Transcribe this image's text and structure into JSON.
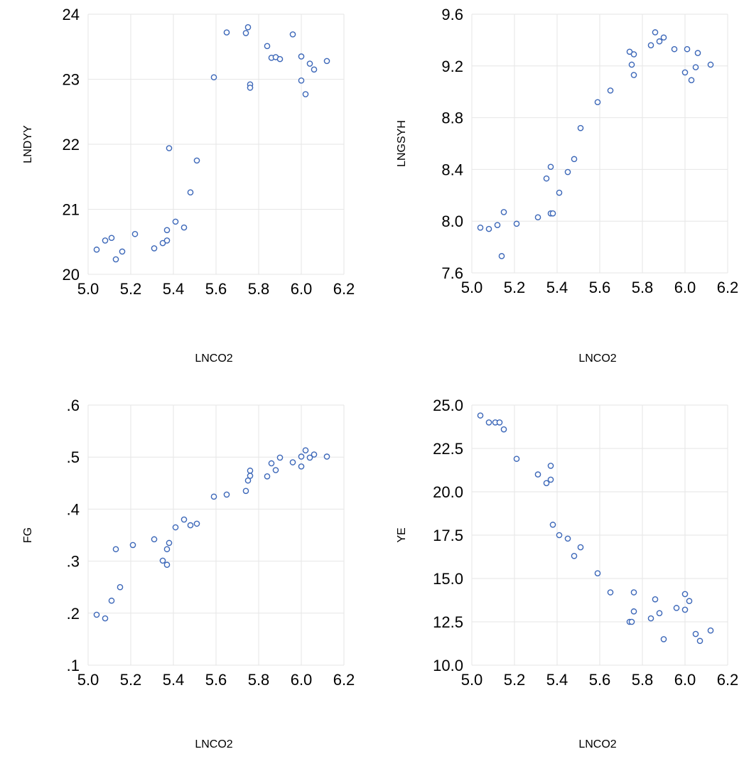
{
  "colors": {
    "marker": "#3c67b8",
    "grid": "#e6e6e6",
    "background": "#ffffff"
  },
  "chart_data": [
    {
      "type": "scatter",
      "xlabel": "LNCO2",
      "ylabel": "LNDYY",
      "xlim": [
        5.0,
        6.2
      ],
      "ylim": [
        20,
        24
      ],
      "x_ticks": [
        "5.0",
        "5.2",
        "5.4",
        "5.6",
        "5.8",
        "6.0",
        "6.2"
      ],
      "y_ticks": [
        "20",
        "21",
        "22",
        "23",
        "24"
      ],
      "grid": true,
      "points": [
        [
          5.04,
          20.38
        ],
        [
          5.08,
          20.52
        ],
        [
          5.11,
          20.56
        ],
        [
          5.13,
          20.23
        ],
        [
          5.16,
          20.35
        ],
        [
          5.22,
          20.62
        ],
        [
          5.31,
          20.4
        ],
        [
          5.35,
          20.48
        ],
        [
          5.37,
          20.52
        ],
        [
          5.37,
          20.68
        ],
        [
          5.38,
          21.94
        ],
        [
          5.41,
          20.81
        ],
        [
          5.45,
          20.72
        ],
        [
          5.48,
          21.26
        ],
        [
          5.51,
          21.75
        ],
        [
          5.59,
          23.03
        ],
        [
          5.65,
          23.72
        ],
        [
          5.74,
          23.71
        ],
        [
          5.75,
          23.8
        ],
        [
          5.76,
          22.92
        ],
        [
          5.76,
          22.87
        ],
        [
          5.84,
          23.51
        ],
        [
          5.86,
          23.33
        ],
        [
          5.88,
          23.34
        ],
        [
          5.9,
          23.31
        ],
        [
          5.96,
          23.69
        ],
        [
          6.0,
          23.35
        ],
        [
          6.0,
          22.98
        ],
        [
          6.02,
          22.77
        ],
        [
          6.04,
          23.24
        ],
        [
          6.06,
          23.15
        ],
        [
          6.12,
          23.28
        ]
      ]
    },
    {
      "type": "scatter",
      "xlabel": "LNCO2",
      "ylabel": "LNGSYH",
      "xlim": [
        5.0,
        6.2
      ],
      "ylim": [
        7.6,
        9.6
      ],
      "x_ticks": [
        "5.0",
        "5.2",
        "5.4",
        "5.6",
        "5.8",
        "6.0",
        "6.2"
      ],
      "y_ticks": [
        "7.6",
        "8.0",
        "8.4",
        "8.8",
        "9.2",
        "9.6"
      ],
      "grid": true,
      "points": [
        [
          5.04,
          7.95
        ],
        [
          5.08,
          7.94
        ],
        [
          5.12,
          7.97
        ],
        [
          5.14,
          7.73
        ],
        [
          5.15,
          8.07
        ],
        [
          5.21,
          7.98
        ],
        [
          5.31,
          8.03
        ],
        [
          5.35,
          8.33
        ],
        [
          5.37,
          8.06
        ],
        [
          5.37,
          8.42
        ],
        [
          5.38,
          8.06
        ],
        [
          5.41,
          8.22
        ],
        [
          5.45,
          8.38
        ],
        [
          5.48,
          8.48
        ],
        [
          5.51,
          8.72
        ],
        [
          5.59,
          8.92
        ],
        [
          5.65,
          9.01
        ],
        [
          5.74,
          9.31
        ],
        [
          5.75,
          9.21
        ],
        [
          5.76,
          9.13
        ],
        [
          5.76,
          9.29
        ],
        [
          5.84,
          9.36
        ],
        [
          5.86,
          9.46
        ],
        [
          5.88,
          9.39
        ],
        [
          5.9,
          9.42
        ],
        [
          5.95,
          9.33
        ],
        [
          6.0,
          9.15
        ],
        [
          6.01,
          9.33
        ],
        [
          6.03,
          9.09
        ],
        [
          6.05,
          9.19
        ],
        [
          6.06,
          9.3
        ],
        [
          6.12,
          9.21
        ]
      ]
    },
    {
      "type": "scatter",
      "xlabel": "LNCO2",
      "ylabel": "FG",
      "xlim": [
        5.0,
        6.2
      ],
      "ylim": [
        0.1,
        0.6
      ],
      "x_ticks": [
        "5.0",
        "5.2",
        "5.4",
        "5.6",
        "5.8",
        "6.0",
        "6.2"
      ],
      "y_ticks": [
        ".1",
        ".2",
        ".3",
        ".4",
        ".5",
        ".6"
      ],
      "grid": true,
      "points": [
        [
          5.04,
          0.197
        ],
        [
          5.08,
          0.19
        ],
        [
          5.11,
          0.224
        ],
        [
          5.13,
          0.323
        ],
        [
          5.15,
          0.25
        ],
        [
          5.21,
          0.331
        ],
        [
          5.31,
          0.342
        ],
        [
          5.35,
          0.301
        ],
        [
          5.37,
          0.323
        ],
        [
          5.37,
          0.293
        ],
        [
          5.38,
          0.335
        ],
        [
          5.41,
          0.365
        ],
        [
          5.45,
          0.38
        ],
        [
          5.48,
          0.369
        ],
        [
          5.51,
          0.372
        ],
        [
          5.59,
          0.424
        ],
        [
          5.65,
          0.428
        ],
        [
          5.74,
          0.435
        ],
        [
          5.75,
          0.455
        ],
        [
          5.76,
          0.464
        ],
        [
          5.76,
          0.474
        ],
        [
          5.84,
          0.463
        ],
        [
          5.86,
          0.488
        ],
        [
          5.88,
          0.475
        ],
        [
          5.9,
          0.499
        ],
        [
          5.96,
          0.49
        ],
        [
          6.0,
          0.482
        ],
        [
          6.0,
          0.501
        ],
        [
          6.02,
          0.513
        ],
        [
          6.04,
          0.499
        ],
        [
          6.06,
          0.505
        ],
        [
          6.12,
          0.501
        ]
      ]
    },
    {
      "type": "scatter",
      "xlabel": "LNCO2",
      "ylabel": "YE",
      "xlim": [
        5.0,
        6.2
      ],
      "ylim": [
        10.0,
        25.0
      ],
      "x_ticks": [
        "5.0",
        "5.2",
        "5.4",
        "5.6",
        "5.8",
        "6.0",
        "6.2"
      ],
      "y_ticks": [
        "10.0",
        "12.5",
        "15.0",
        "17.5",
        "20.0",
        "22.5",
        "25.0"
      ],
      "grid": true,
      "points": [
        [
          5.04,
          24.4
        ],
        [
          5.08,
          24.0
        ],
        [
          5.11,
          24.0
        ],
        [
          5.13,
          24.0
        ],
        [
          5.15,
          23.6
        ],
        [
          5.21,
          21.9
        ],
        [
          5.31,
          21.0
        ],
        [
          5.35,
          20.5
        ],
        [
          5.37,
          20.7
        ],
        [
          5.37,
          21.5
        ],
        [
          5.38,
          18.1
        ],
        [
          5.41,
          17.5
        ],
        [
          5.45,
          17.3
        ],
        [
          5.48,
          16.3
        ],
        [
          5.51,
          16.8
        ],
        [
          5.59,
          15.3
        ],
        [
          5.65,
          14.2
        ],
        [
          5.74,
          12.5
        ],
        [
          5.75,
          12.5
        ],
        [
          5.76,
          13.1
        ],
        [
          5.76,
          14.2
        ],
        [
          5.84,
          12.7
        ],
        [
          5.86,
          13.8
        ],
        [
          5.88,
          13.0
        ],
        [
          5.9,
          11.5
        ],
        [
          5.96,
          13.3
        ],
        [
          6.0,
          14.1
        ],
        [
          6.0,
          13.2
        ],
        [
          6.02,
          13.7
        ],
        [
          6.05,
          11.8
        ],
        [
          6.07,
          11.4
        ],
        [
          6.12,
          12.0
        ]
      ]
    }
  ]
}
